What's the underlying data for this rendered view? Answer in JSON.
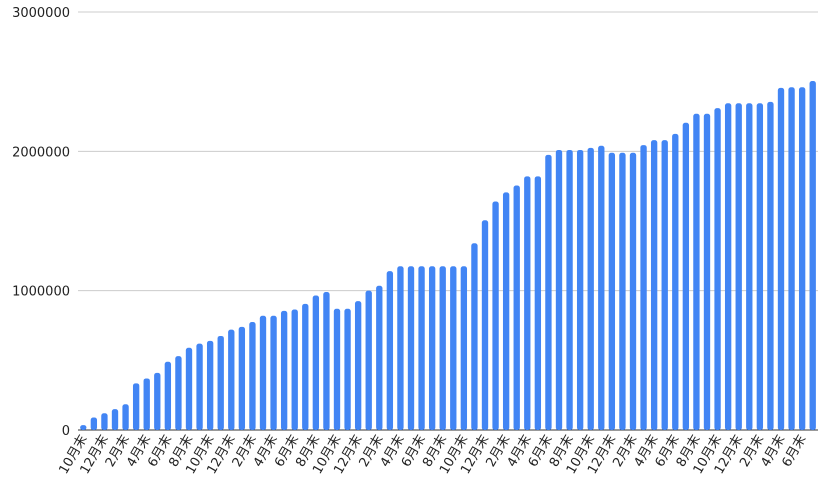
{
  "chart_data": {
    "type": "bar",
    "color": "#4285f4",
    "grid": true,
    "ylim": [
      0,
      3000000
    ],
    "yticks": [
      0,
      1000000,
      2000000,
      3000000
    ],
    "categories": [
      "10月末",
      null,
      "12月末",
      null,
      "2月末",
      null,
      "4月末",
      null,
      "6月末",
      null,
      "8月末",
      null,
      "10月末",
      null,
      "12月末",
      null,
      "2月末",
      null,
      "4月末",
      null,
      "6月末",
      null,
      "8月末",
      null,
      "10月末",
      null,
      "12月末",
      null,
      "2月末",
      null,
      "4月末",
      null,
      "6月末",
      null,
      "8月末",
      null,
      "10月末",
      null,
      "12月末",
      null,
      "2月末",
      null,
      "4月末",
      null,
      "6月末",
      null,
      "8月末",
      null,
      "10月末",
      null,
      "12月末",
      null,
      "2月末",
      null,
      "4月末",
      null,
      "6月末",
      null,
      "8月末",
      null,
      "10月末",
      null,
      "12月末",
      null,
      "2月末",
      null,
      "4月末",
      null,
      "6月末",
      null
    ],
    "values": [
      35000,
      90000,
      120000,
      150000,
      185000,
      335000,
      370000,
      410000,
      490000,
      530000,
      590000,
      620000,
      640000,
      675000,
      720000,
      740000,
      775000,
      820000,
      820000,
      855000,
      865000,
      905000,
      965000,
      990000,
      870000,
      870000,
      925000,
      1000000,
      1035000,
      1140000,
      1175000,
      1175000,
      1175000,
      1175000,
      1175000,
      1175000,
      1175000,
      1340000,
      1505000,
      1640000,
      1705000,
      1755000,
      1820000,
      1820000,
      1975000,
      2010000,
      2010000,
      2010000,
      2025000,
      2040000,
      1990000,
      1990000,
      1990000,
      2045000,
      2080000,
      2080000,
      2125000,
      2205000,
      2270000,
      2270000,
      2310000,
      2345000,
      2345000,
      2345000,
      2345000,
      2355000,
      2455000,
      2460000,
      2460000,
      2505000
    ]
  }
}
